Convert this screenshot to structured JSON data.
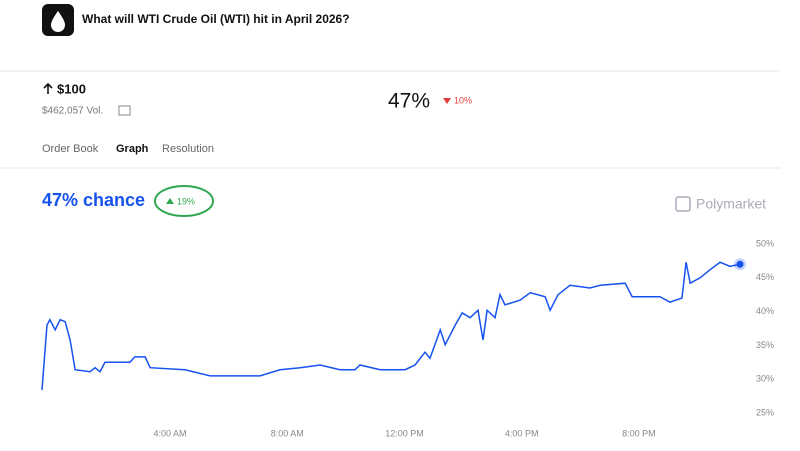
{
  "header": {
    "title": "What will WTI Crude Oil (WTI) hit in April 2026?"
  },
  "outcome": {
    "label": "$100",
    "volume": "$462,057 Vol.",
    "price": "47%",
    "change": "10%"
  },
  "tabs": [
    "Order Book",
    "Graph",
    "Resolution"
  ],
  "chance": {
    "label": "47% chance",
    "change": "19%"
  },
  "brand": "Polymarket",
  "chart_data": {
    "type": "line",
    "color": "#1652f0",
    "grid": false,
    "x": [
      -0.37,
      -0.2,
      -0.1,
      0.08,
      0.25,
      0.42,
      0.59,
      0.76,
      1.27,
      1.44,
      1.61,
      1.78,
      2.63,
      2.8,
      3.15,
      3.32,
      4.51,
      5.37,
      7.07,
      7.75,
      8.44,
      9.12,
      9.8,
      10.31,
      10.48,
      11.17,
      12.02,
      12.36,
      12.7,
      12.87,
      13.22,
      13.39,
      13.73,
      13.97,
      14.24,
      14.51,
      14.68,
      14.82,
      15.09,
      15.26,
      15.43,
      15.95,
      16.29,
      16.8,
      16.97,
      17.24,
      17.65,
      18.33,
      18.68,
      19.53,
      19.77,
      20.72,
      21.06,
      21.47,
      21.61,
      21.75,
      22.09,
      22.43,
      22.77,
      23.11,
      23.45
    ],
    "values": [
      28.4,
      38,
      38.8,
      37.3,
      38.8,
      38.5,
      35.8,
      31.4,
      31.1,
      31.7,
      31.1,
      32.5,
      32.5,
      33.3,
      33.3,
      31.7,
      31.4,
      30.5,
      30.5,
      31.4,
      31.7,
      32.1,
      31.4,
      31.4,
      32.1,
      31.4,
      31.4,
      32.1,
      34.0,
      33.1,
      37.3,
      35.1,
      38.0,
      39.8,
      39.1,
      40.2,
      35.8,
      40.2,
      39.1,
      42.5,
      41.0,
      41.7,
      42.8,
      42.2,
      40.2,
      42.5,
      43.9,
      43.5,
      43.9,
      44.2,
      42.2,
      42.2,
      41.4,
      42.0,
      47.3,
      44.2,
      45.0,
      46.2,
      47.3,
      46.7,
      47
    ],
    "xlim": [
      -0.37,
      23.45
    ],
    "xticks": [
      {
        "value": 4,
        "label": "4:00 AM"
      },
      {
        "value": 8,
        "label": "8:00 AM"
      },
      {
        "value": 12,
        "label": "12:00 PM"
      },
      {
        "value": 16,
        "label": "4:00 PM"
      },
      {
        "value": 20,
        "label": "8:00 PM"
      }
    ],
    "ylim": [
      25,
      50
    ],
    "yticks": [
      {
        "value": 25,
        "label": "25%"
      },
      {
        "value": 30,
        "label": "30%"
      },
      {
        "value": 35,
        "label": "35%"
      },
      {
        "value": 40,
        "label": "40%"
      },
      {
        "value": 45,
        "label": "45%"
      },
      {
        "value": 50,
        "label": "50%"
      }
    ]
  }
}
